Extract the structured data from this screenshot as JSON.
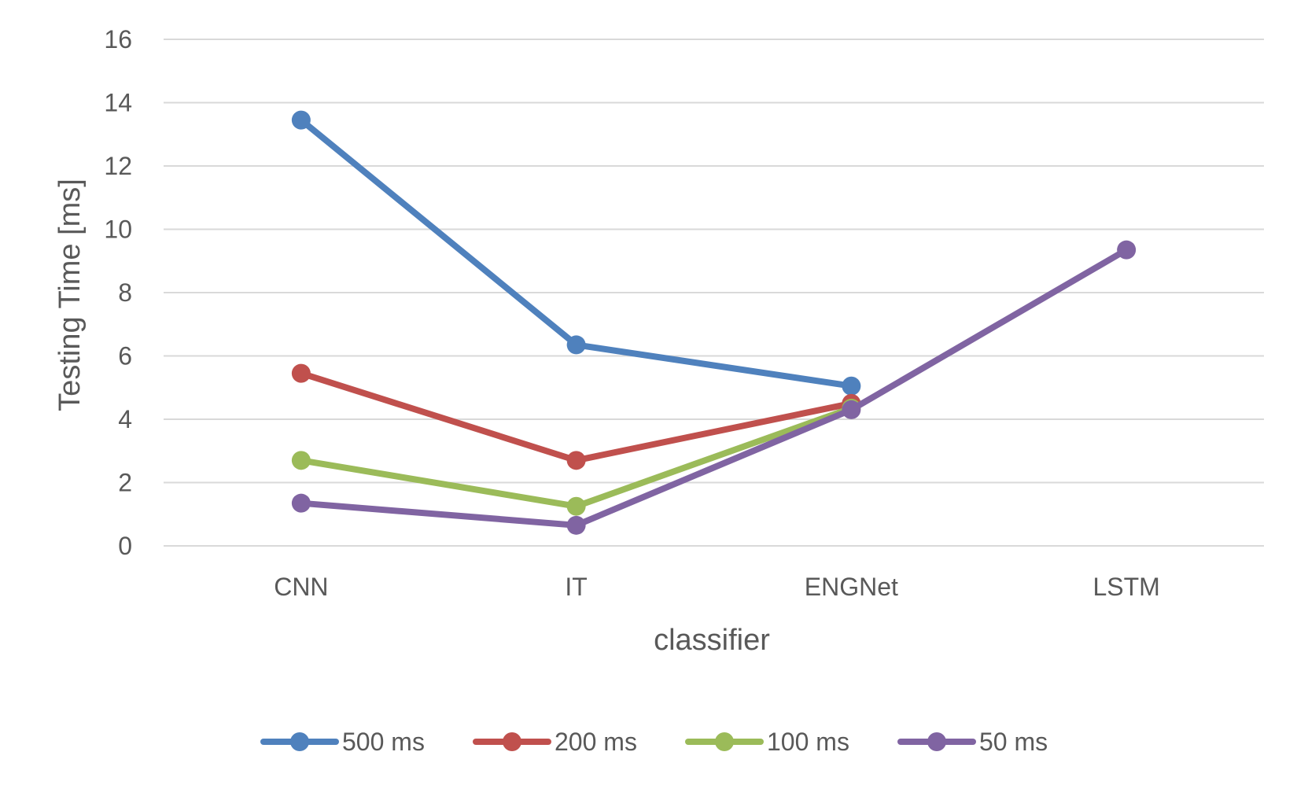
{
  "chart_data": {
    "type": "line",
    "categories": [
      "CNN",
      "IT",
      "ENGNet",
      "LSTM"
    ],
    "series": [
      {
        "name": "500 ms",
        "color": "#4f81bd",
        "values": [
          13.45,
          6.35,
          5.05,
          null
        ]
      },
      {
        "name": "200 ms",
        "color": "#c0504d",
        "values": [
          5.45,
          2.7,
          4.5,
          null
        ]
      },
      {
        "name": "100 ms",
        "color": "#9bbb59",
        "values": [
          2.7,
          1.25,
          4.35,
          null
        ]
      },
      {
        "name": "50 ms",
        "color": "#8064a2",
        "values": [
          1.35,
          0.65,
          4.3,
          9.35
        ]
      }
    ],
    "title": "",
    "xlabel": "classifier",
    "ylabel": "Testing Time [ms]",
    "ylim": [
      0,
      16
    ],
    "yticks": [
      "0",
      "2",
      "4",
      "6",
      "8",
      "10",
      "12",
      "14",
      "16"
    ],
    "grid": true,
    "legend_position": "bottom"
  }
}
